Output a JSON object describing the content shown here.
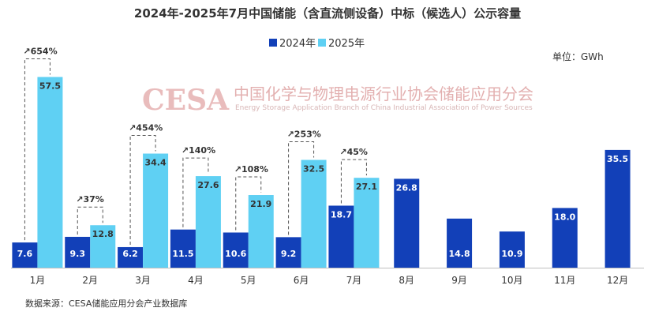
{
  "watermark": {
    "logo": "CESA",
    "cn": "中国化学与物理电源行业协会储能应用分会",
    "en": "Energy Storage Application Branch of China Industrial Association of Power Sources"
  },
  "chart_data": {
    "type": "bar",
    "title": "2024年-2025年7月中国储能（含直流侧设备）中标（候选人）公示容量",
    "unit": "单位：GWh",
    "source": "数据来源：CESA储能应用分会产业数据库",
    "categories": [
      "1月",
      "2月",
      "3月",
      "4月",
      "5月",
      "6月",
      "7月",
      "8月",
      "9月",
      "10月",
      "11月",
      "12月"
    ],
    "series": [
      {
        "name": "2024年",
        "color": "#1240b8",
        "values": [
          7.6,
          9.3,
          6.2,
          11.5,
          10.6,
          9.2,
          18.7,
          26.8,
          14.8,
          10.9,
          18.0,
          35.5
        ]
      },
      {
        "name": "2025年",
        "color": "#5fd0f3",
        "values": [
          57.5,
          12.8,
          34.4,
          27.6,
          21.9,
          32.5,
          27.1,
          null,
          null,
          null,
          null,
          null
        ]
      }
    ],
    "growth": [
      "↗654%",
      "↗37%",
      "↗454%",
      "↗140%",
      "↗108%",
      "↗253%",
      "↗45%"
    ],
    "ylim": [
      0,
      60
    ],
    "legend_position": "top",
    "grid": false
  }
}
